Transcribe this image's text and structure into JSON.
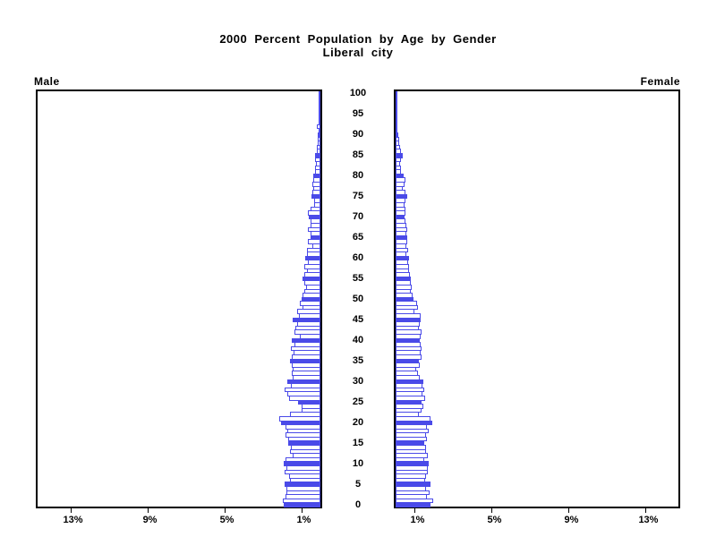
{
  "title": {
    "line1": "2000 Percent Population by Age by Gender",
    "line2": "Liberal city"
  },
  "panels": {
    "left_label": "Male",
    "right_label": "Female"
  },
  "colors": {
    "bar_outline": "#4a4ae8",
    "bar_fill_solid": "#4a4ae8",
    "bar_fill_hollow": "#ffffff",
    "axis": "#000000",
    "background": "#ffffff"
  },
  "chart_data": {
    "type": "bar",
    "subtype": "population-pyramid",
    "title": "2000 Percent Population by Age by Gender",
    "subtitle": "Liberal city",
    "xlabel_format": "percent",
    "x_ticks": [
      1,
      5,
      9,
      13
    ],
    "x_tick_labels": [
      "1%",
      "5%",
      "9%",
      "13%"
    ],
    "xlim": [
      0,
      14.7
    ],
    "age_min": 0,
    "age_max": 100,
    "age_step": 1,
    "age_tick_labels": [
      "0",
      "5",
      "10",
      "15",
      "20",
      "25",
      "30",
      "35",
      "40",
      "45",
      "50",
      "55",
      "60",
      "65",
      "70",
      "75",
      "80",
      "85",
      "90",
      "95",
      "100"
    ],
    "solid_fill_rule": "ages divisible by 5 are solid blue, others hollow",
    "series": [
      {
        "name": "Male",
        "direction": "left",
        "values": [
          1.89,
          1.94,
          1.82,
          1.79,
          1.79,
          1.85,
          1.59,
          1.64,
          1.85,
          1.79,
          1.89,
          1.82,
          1.44,
          1.59,
          1.52,
          1.67,
          1.67,
          1.82,
          1.74,
          1.82,
          2.05,
          2.15,
          1.59,
          1.0,
          0.98,
          1.17,
          1.62,
          1.7,
          1.86,
          1.53,
          1.71,
          1.42,
          1.5,
          1.45,
          1.51,
          1.56,
          1.48,
          1.4,
          1.52,
          1.36,
          1.5,
          1.06,
          1.36,
          1.29,
          1.21,
          1.44,
          1.14,
          1.21,
          0.91,
          1.06,
          0.98,
          0.92,
          0.85,
          0.73,
          0.86,
          0.95,
          0.85,
          0.71,
          0.83,
          0.67,
          0.79,
          0.68,
          0.68,
          0.44,
          0.64,
          0.5,
          0.53,
          0.65,
          0.53,
          0.53,
          0.61,
          0.65,
          0.53,
          0.33,
          0.33,
          0.45,
          0.4,
          0.36,
          0.42,
          0.38,
          0.38,
          0.26,
          0.26,
          0.23,
          0.26,
          0.3,
          0.2,
          0.18,
          0.15,
          0.12,
          0.12,
          0.09,
          0.18,
          0.09,
          0.06,
          0.05,
          0.03,
          0.03,
          0.02,
          0.02,
          0.02
        ]
      },
      {
        "name": "Female",
        "direction": "right",
        "values": [
          1.82,
          1.97,
          1.64,
          1.76,
          1.58,
          1.82,
          1.53,
          1.58,
          1.67,
          1.67,
          1.73,
          1.47,
          1.67,
          1.56,
          1.56,
          1.47,
          1.64,
          1.56,
          1.7,
          1.61,
          1.89,
          1.82,
          1.21,
          1.36,
          1.44,
          1.35,
          1.52,
          1.41,
          1.47,
          1.38,
          1.44,
          1.24,
          1.18,
          1.06,
          1.27,
          1.21,
          1.35,
          1.29,
          1.35,
          1.32,
          1.26,
          1.29,
          1.33,
          1.21,
          1.24,
          1.29,
          1.29,
          0.98,
          1.14,
          1.11,
          0.91,
          0.88,
          0.8,
          0.83,
          0.77,
          0.8,
          0.73,
          0.68,
          0.7,
          0.64,
          0.7,
          0.58,
          0.64,
          0.58,
          0.61,
          0.59,
          0.55,
          0.61,
          0.55,
          0.52,
          0.48,
          0.5,
          0.53,
          0.45,
          0.5,
          0.61,
          0.52,
          0.38,
          0.45,
          0.5,
          0.41,
          0.3,
          0.3,
          0.23,
          0.26,
          0.35,
          0.3,
          0.23,
          0.2,
          0.18,
          0.15,
          0.08,
          0.08,
          0.08,
          0.06,
          0.05,
          0.03,
          0.02,
          0.03,
          0.02,
          0.02
        ]
      }
    ]
  }
}
